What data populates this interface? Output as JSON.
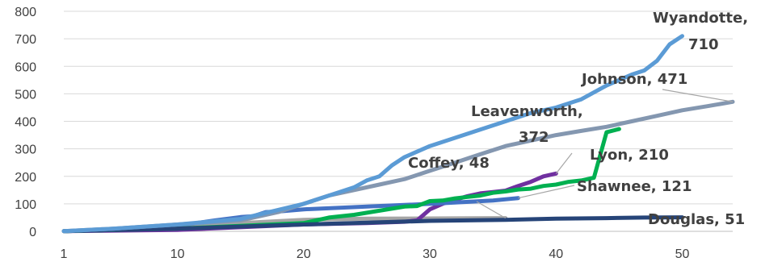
{
  "chart_data": {
    "type": "line",
    "title": "",
    "xlabel": "",
    "ylabel": "",
    "xlim": [
      1,
      54
    ],
    "ylim": [
      0,
      800
    ],
    "x_ticks": [
      1,
      10,
      20,
      30,
      40,
      50
    ],
    "y_ticks": [
      0,
      100,
      200,
      300,
      400,
      500,
      600,
      700,
      800
    ],
    "grid": "horizontal",
    "legend": "none",
    "series": [
      {
        "name": "Coffey",
        "color": "#a5a5a5",
        "x": [
          1,
          5,
          10,
          15,
          20,
          25,
          30,
          35,
          36
        ],
        "y": [
          1,
          5,
          15,
          30,
          42,
          46,
          47,
          48,
          48
        ],
        "label": "Coffey, 48"
      },
      {
        "name": "Lyon",
        "color": "#7030a0",
        "x": [
          1,
          10,
          20,
          25,
          28,
          29,
          30,
          31,
          32,
          33,
          34,
          35,
          36,
          37,
          38,
          39,
          40
        ],
        "y": [
          1,
          5,
          25,
          30,
          35,
          40,
          80,
          100,
          115,
          128,
          138,
          143,
          148,
          165,
          180,
          200,
          210
        ],
        "label": "Lyon, 210"
      },
      {
        "name": "Shawnee",
        "color": "#4472c4",
        "x": [
          1,
          5,
          10,
          13,
          15,
          16,
          17,
          18,
          20,
          25,
          30,
          35,
          37
        ],
        "y": [
          1,
          5,
          20,
          40,
          52,
          55,
          70,
          72,
          80,
          90,
          100,
          112,
          121
        ],
        "label": "Shawnee, 121"
      },
      {
        "name": "Leavenworth",
        "color": "#00b050",
        "x": [
          1,
          10,
          20,
          22,
          24,
          26,
          28,
          29,
          30,
          31,
          32,
          33,
          34,
          35,
          36,
          37,
          38,
          39,
          40,
          41,
          42,
          43,
          44,
          45
        ],
        "y": [
          1,
          10,
          30,
          50,
          60,
          75,
          90,
          92,
          110,
          112,
          120,
          125,
          130,
          140,
          145,
          152,
          155,
          165,
          170,
          180,
          185,
          195,
          360,
          372
        ],
        "label": "Leavenworth, 372"
      },
      {
        "name": "Douglas",
        "color": "#264478",
        "x": [
          1,
          10,
          20,
          30,
          36,
          40,
          44,
          47,
          50
        ],
        "y": [
          1,
          10,
          25,
          38,
          42,
          46,
          48,
          50,
          51
        ],
        "label": "Douglas, 51"
      },
      {
        "name": "Johnson",
        "color": "#8497b0",
        "x": [
          1,
          5,
          10,
          15,
          18,
          20,
          22,
          24,
          26,
          28,
          30,
          32,
          34,
          36,
          38,
          40,
          42,
          44,
          46,
          48,
          50,
          52,
          54
        ],
        "y": [
          1,
          10,
          25,
          40,
          70,
          100,
          130,
          150,
          170,
          190,
          220,
          250,
          280,
          310,
          330,
          350,
          365,
          380,
          400,
          420,
          440,
          455,
          471
        ],
        "label": "Johnson, 471"
      },
      {
        "name": "Wyandotte",
        "color": "#5b9bd5",
        "x": [
          1,
          5,
          10,
          15,
          20,
          22,
          24,
          25,
          26,
          27,
          28,
          30,
          32,
          34,
          36,
          38,
          40,
          42,
          44,
          46,
          47,
          48,
          49,
          50
        ],
        "y": [
          1,
          10,
          25,
          45,
          100,
          130,
          160,
          185,
          200,
          240,
          270,
          310,
          340,
          370,
          400,
          430,
          450,
          480,
          530,
          570,
          585,
          620,
          680,
          710
        ],
        "label": "Wyandotte, 710"
      }
    ]
  }
}
